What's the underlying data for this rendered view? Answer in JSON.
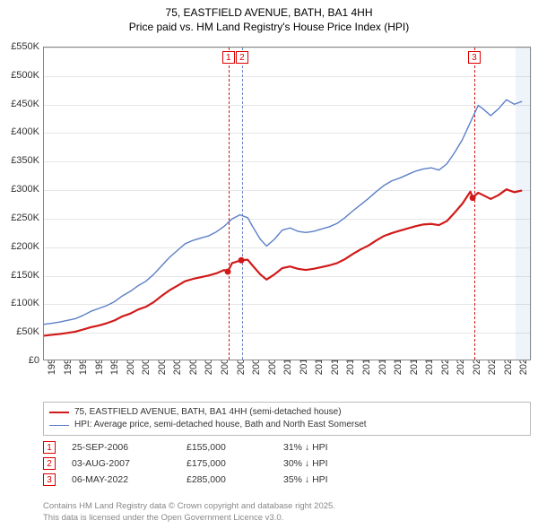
{
  "title": {
    "line1": "75, EASTFIELD AVENUE, BATH, BA1 4HH",
    "line2": "Price paid vs. HM Land Registry's House Price Index (HPI)"
  },
  "chart": {
    "type": "line",
    "x_year_min": 1995,
    "x_year_max": 2026,
    "ylim": [
      0,
      550000
    ],
    "ytick_step": 50000,
    "ytick_labels": [
      "£0",
      "£50K",
      "£100K",
      "£150K",
      "£200K",
      "£250K",
      "£300K",
      "£350K",
      "£400K",
      "£450K",
      "£500K",
      "£550K"
    ],
    "xtick_labels": [
      "1995",
      "1996",
      "1997",
      "1998",
      "1999",
      "2000",
      "2001",
      "2002",
      "2003",
      "2004",
      "2005",
      "2006",
      "2007",
      "2008",
      "2009",
      "2010",
      "2011",
      "2012",
      "2013",
      "2014",
      "2015",
      "2016",
      "2017",
      "2018",
      "2019",
      "2020",
      "2021",
      "2022",
      "2023",
      "2024",
      "2025"
    ],
    "background_color": "#ffffff",
    "grid_color": "#e6e6e6",
    "shade_band_years": [
      2025,
      2026
    ],
    "series": {
      "hpi": {
        "label": "HPI: Average price, semi-detached house, Bath and North East Somerset",
        "color": "#5b7fc7",
        "width": 1.4,
        "points": [
          [
            1995.0,
            62000
          ],
          [
            1995.5,
            64000
          ],
          [
            1996.0,
            66000
          ],
          [
            1996.5,
            69000
          ],
          [
            1997.0,
            72000
          ],
          [
            1997.5,
            78000
          ],
          [
            1998.0,
            85000
          ],
          [
            1998.5,
            90000
          ],
          [
            1999.0,
            95000
          ],
          [
            1999.5,
            102000
          ],
          [
            2000.0,
            112000
          ],
          [
            2000.5,
            120000
          ],
          [
            2001.0,
            130000
          ],
          [
            2001.5,
            138000
          ],
          [
            2002.0,
            150000
          ],
          [
            2002.5,
            165000
          ],
          [
            2003.0,
            180000
          ],
          [
            2003.5,
            192000
          ],
          [
            2004.0,
            204000
          ],
          [
            2004.5,
            210000
          ],
          [
            2005.0,
            214000
          ],
          [
            2005.5,
            218000
          ],
          [
            2006.0,
            225000
          ],
          [
            2006.5,
            235000
          ],
          [
            2007.0,
            248000
          ],
          [
            2007.5,
            255000
          ],
          [
            2008.0,
            250000
          ],
          [
            2008.3,
            235000
          ],
          [
            2008.8,
            212000
          ],
          [
            2009.2,
            200000
          ],
          [
            2009.7,
            212000
          ],
          [
            2010.2,
            228000
          ],
          [
            2010.7,
            232000
          ],
          [
            2011.2,
            226000
          ],
          [
            2011.7,
            224000
          ],
          [
            2012.2,
            226000
          ],
          [
            2012.7,
            230000
          ],
          [
            2013.2,
            234000
          ],
          [
            2013.7,
            240000
          ],
          [
            2014.2,
            250000
          ],
          [
            2014.7,
            262000
          ],
          [
            2015.2,
            273000
          ],
          [
            2015.7,
            284000
          ],
          [
            2016.2,
            296000
          ],
          [
            2016.7,
            307000
          ],
          [
            2017.2,
            315000
          ],
          [
            2017.7,
            320000
          ],
          [
            2018.2,
            326000
          ],
          [
            2018.7,
            332000
          ],
          [
            2019.2,
            336000
          ],
          [
            2019.7,
            338000
          ],
          [
            2020.2,
            334000
          ],
          [
            2020.7,
            345000
          ],
          [
            2021.2,
            365000
          ],
          [
            2021.7,
            388000
          ],
          [
            2022.2,
            418000
          ],
          [
            2022.7,
            448000
          ],
          [
            2023.0,
            442000
          ],
          [
            2023.5,
            430000
          ],
          [
            2024.0,
            442000
          ],
          [
            2024.5,
            458000
          ],
          [
            2025.0,
            450000
          ],
          [
            2025.5,
            455000
          ]
        ]
      },
      "price_paid": {
        "label": "75, EASTFIELD AVENUE, BATH, BA1 4HH (semi-detached house)",
        "color": "#d11919",
        "width": 2.2,
        "points": [
          [
            1995.0,
            42000
          ],
          [
            1995.5,
            43500
          ],
          [
            1996.0,
            45000
          ],
          [
            1996.5,
            47000
          ],
          [
            1997.0,
            49000
          ],
          [
            1997.5,
            53000
          ],
          [
            1998.0,
            57000
          ],
          [
            1998.5,
            60000
          ],
          [
            1999.0,
            64000
          ],
          [
            1999.5,
            69000
          ],
          [
            2000.0,
            76000
          ],
          [
            2000.5,
            81000
          ],
          [
            2001.0,
            88000
          ],
          [
            2001.5,
            93000
          ],
          [
            2002.0,
            101000
          ],
          [
            2002.5,
            112000
          ],
          [
            2003.0,
            122000
          ],
          [
            2003.5,
            130000
          ],
          [
            2004.0,
            138000
          ],
          [
            2004.5,
            142000
          ],
          [
            2005.0,
            145000
          ],
          [
            2005.5,
            148000
          ],
          [
            2006.0,
            152000
          ],
          [
            2006.5,
            158000
          ],
          [
            2006.73,
            155000
          ],
          [
            2007.0,
            170000
          ],
          [
            2007.59,
            175000
          ],
          [
            2008.0,
            176000
          ],
          [
            2008.3,
            166000
          ],
          [
            2008.8,
            150000
          ],
          [
            2009.2,
            141000
          ],
          [
            2009.7,
            150000
          ],
          [
            2010.2,
            161000
          ],
          [
            2010.7,
            164000
          ],
          [
            2011.2,
            160000
          ],
          [
            2011.7,
            158000
          ],
          [
            2012.2,
            160000
          ],
          [
            2012.7,
            163000
          ],
          [
            2013.2,
            166000
          ],
          [
            2013.7,
            170000
          ],
          [
            2014.2,
            177000
          ],
          [
            2014.7,
            186000
          ],
          [
            2015.2,
            194000
          ],
          [
            2015.7,
            201000
          ],
          [
            2016.2,
            210000
          ],
          [
            2016.7,
            218000
          ],
          [
            2017.2,
            223000
          ],
          [
            2017.7,
            227000
          ],
          [
            2018.2,
            231000
          ],
          [
            2018.7,
            235000
          ],
          [
            2019.2,
            238000
          ],
          [
            2019.7,
            239000
          ],
          [
            2020.2,
            237000
          ],
          [
            2020.7,
            244000
          ],
          [
            2021.2,
            259000
          ],
          [
            2021.7,
            275000
          ],
          [
            2022.2,
            296000
          ],
          [
            2022.35,
            285000
          ],
          [
            2022.7,
            294000
          ],
          [
            2023.0,
            290000
          ],
          [
            2023.5,
            283000
          ],
          [
            2024.0,
            290000
          ],
          [
            2024.5,
            300000
          ],
          [
            2025.0,
            295000
          ],
          [
            2025.5,
            298000
          ]
        ],
        "price_markers": [
          {
            "year": 2006.73,
            "value": 155000
          },
          {
            "year": 2007.59,
            "value": 175000
          },
          {
            "year": 2022.35,
            "value": 285000
          }
        ]
      }
    },
    "event_markers": [
      {
        "n": "1",
        "year": 2006.73,
        "color": "#d11919"
      },
      {
        "n": "2",
        "year": 2007.59,
        "color": "#6a87c8"
      },
      {
        "n": "3",
        "year": 2022.35,
        "color": "#d11919"
      }
    ]
  },
  "legend": {
    "rows": [
      {
        "color": "#d11919",
        "width": 2.2
      },
      {
        "color": "#5b7fc7",
        "width": 1.4
      }
    ]
  },
  "events_table": {
    "rows": [
      {
        "n": "1",
        "date": "25-SEP-2006",
        "price": "£155,000",
        "delta": "31% ↓ HPI"
      },
      {
        "n": "2",
        "date": "03-AUG-2007",
        "price": "£175,000",
        "delta": "30% ↓ HPI"
      },
      {
        "n": "3",
        "date": "06-MAY-2022",
        "price": "£285,000",
        "delta": "35% ↓ HPI"
      }
    ]
  },
  "footer": {
    "line1": "Contains HM Land Registry data © Crown copyright and database right 2025.",
    "line2": "This data is licensed under the Open Government Licence v3.0."
  }
}
